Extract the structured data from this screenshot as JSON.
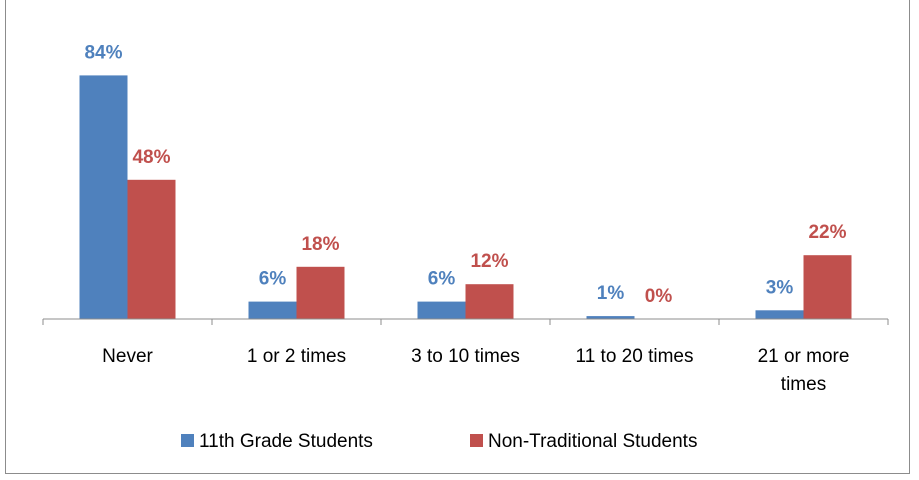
{
  "chart_data": {
    "type": "bar",
    "title": "",
    "categories": [
      "Never",
      "1 or 2 times",
      "3 to 10 times",
      "11 to 20 times",
      "21 or more times"
    ],
    "category_lines": [
      [
        "Never"
      ],
      [
        "1 or 2 times"
      ],
      [
        "3 to 10 times"
      ],
      [
        "11 to 20 times"
      ],
      [
        "21 or more",
        "times"
      ]
    ],
    "series": [
      {
        "name": "11th Grade Students",
        "color": "#4f81bd",
        "values": [
          84,
          6,
          6,
          1,
          3
        ],
        "labels": [
          "84%",
          "6%",
          "6%",
          "1%",
          "3%"
        ]
      },
      {
        "name": "Non-Traditional Students",
        "color": "#c0504d",
        "values": [
          48,
          18,
          12,
          0,
          22
        ],
        "labels": [
          "48%",
          "18%",
          "12%",
          "0%",
          "22%"
        ]
      }
    ],
    "ylim": [
      0,
      90
    ],
    "grid": false,
    "legend_position": "bottom",
    "xlabel": "",
    "ylabel": ""
  }
}
